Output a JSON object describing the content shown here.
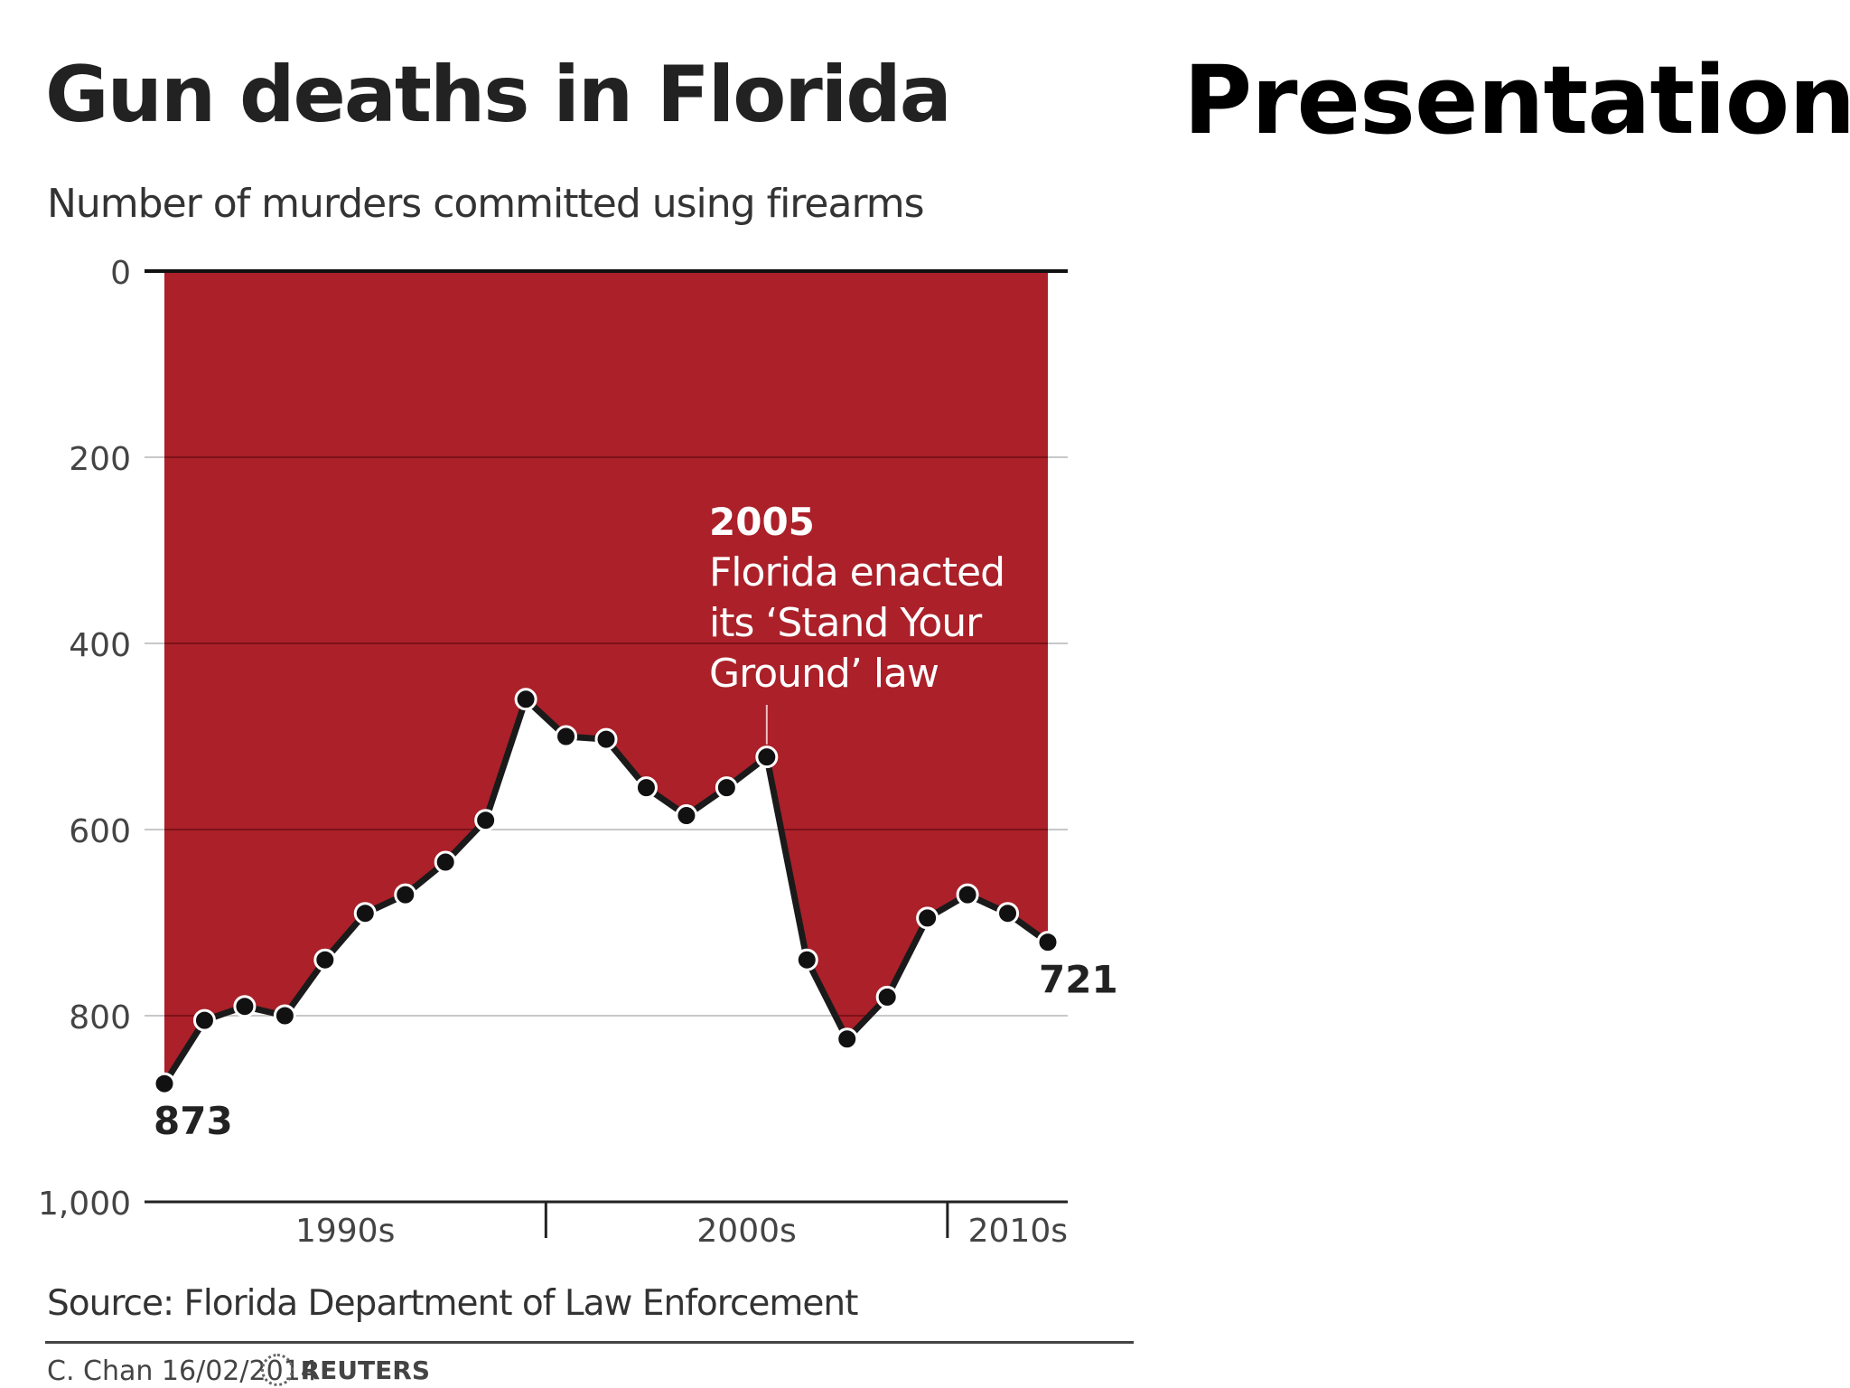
{
  "slide": {
    "heading": "Presentation"
  },
  "chart_data": {
    "type": "area",
    "title": "Gun deaths in Florida",
    "subtitle": "Number of murders committed using firearms",
    "y_inverted": true,
    "ylim": [
      0,
      1000
    ],
    "yticks": [
      0,
      200,
      400,
      600,
      800,
      1000
    ],
    "ytick_labels": [
      "0",
      "200",
      "400",
      "600",
      "800",
      "1,000"
    ],
    "x": [
      1990,
      1991,
      1992,
      1993,
      1994,
      1995,
      1996,
      1997,
      1998,
      1999,
      2000,
      2001,
      2002,
      2003,
      2004,
      2005,
      2006,
      2007,
      2008,
      2009,
      2010,
      2011,
      2012
    ],
    "series": [
      {
        "name": "Number of murders committed using firearms",
        "values": [
          873,
          805,
          790,
          800,
          740,
          690,
          670,
          635,
          590,
          460,
          500,
          503,
          555,
          585,
          555,
          522,
          740,
          825,
          780,
          695,
          670,
          690,
          721
        ]
      }
    ],
    "decades": [
      {
        "label": "1990s",
        "start": 1990,
        "end": 1999.5
      },
      {
        "label": "2000s",
        "start": 1999.5,
        "end": 2009.5
      },
      {
        "label": "2010s",
        "start": 2009.5,
        "end": 2012
      }
    ],
    "value_labels": [
      {
        "year": 1990,
        "text": "873"
      },
      {
        "year": 2012,
        "text": "721"
      }
    ],
    "annotation": {
      "year": 2005,
      "heading": "2005",
      "lines": [
        "Florida enacted",
        "its ‘Stand Your",
        "Ground’ law"
      ]
    },
    "source": "Source: Florida Department of Law Enforcement",
    "credit": "C. Chan  16/02/2014",
    "publisher": "REUTERS",
    "colors": {
      "fill": "#ab2029",
      "line": "#1a1a1a",
      "grid_on_red": "#7e1119",
      "grid_on_white": "#c8c8c8",
      "annotation_text": "#ffffff"
    }
  }
}
